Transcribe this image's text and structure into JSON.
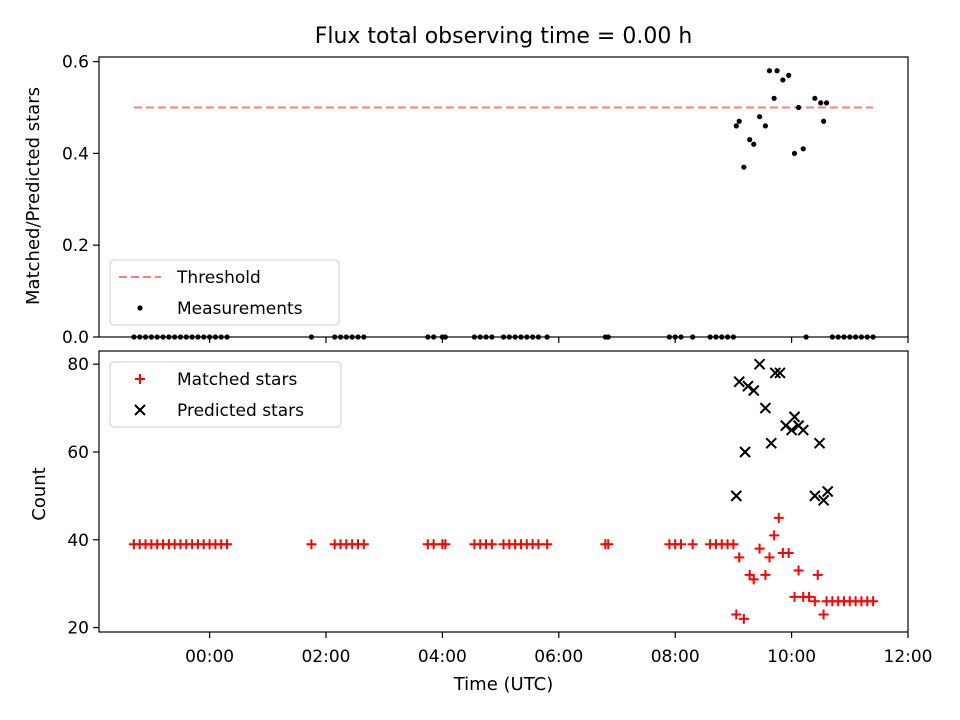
{
  "figure": {
    "title": "Flux total observing time = 0.00 h",
    "xlabel": "Time (UTC)"
  },
  "chart_data": [
    {
      "type": "scatter",
      "ylabel": "Matched/Predicted stars",
      "xlim": [
        -1.9,
        12.0
      ],
      "ylim": [
        0.0,
        0.61
      ],
      "yticks": [
        0.0,
        0.2,
        0.4,
        0.6
      ],
      "ytick_labels": [
        "0.0",
        "0.2",
        "0.4",
        "0.6"
      ],
      "legend": {
        "placement": "lower-left",
        "entries": [
          "Threshold",
          "Measurements"
        ]
      },
      "threshold": {
        "name": "Threshold",
        "value": 0.5,
        "x": [
          -1.3,
          11.4
        ],
        "color": "#f08080",
        "style": "dashed"
      },
      "series": [
        {
          "name": "Measurements",
          "marker": "dot",
          "color": "#000000",
          "points": [
            [
              -1.3,
              0
            ],
            [
              -1.2,
              0
            ],
            [
              -1.1,
              0
            ],
            [
              -1.0,
              0
            ],
            [
              -0.9,
              0
            ],
            [
              -0.8,
              0
            ],
            [
              -0.7,
              0
            ],
            [
              -0.6,
              0
            ],
            [
              -0.5,
              0
            ],
            [
              -0.4,
              0
            ],
            [
              -0.3,
              0
            ],
            [
              -0.2,
              0
            ],
            [
              -0.1,
              0
            ],
            [
              0.0,
              0
            ],
            [
              0.1,
              0
            ],
            [
              0.2,
              0
            ],
            [
              0.3,
              0
            ],
            [
              1.75,
              0
            ],
            [
              2.15,
              0
            ],
            [
              2.25,
              0
            ],
            [
              2.35,
              0
            ],
            [
              2.45,
              0
            ],
            [
              2.55,
              0
            ],
            [
              2.65,
              0
            ],
            [
              3.75,
              0
            ],
            [
              3.85,
              0
            ],
            [
              4.0,
              0
            ],
            [
              4.05,
              0
            ],
            [
              4.55,
              0
            ],
            [
              4.65,
              0
            ],
            [
              4.75,
              0
            ],
            [
              4.85,
              0
            ],
            [
              5.05,
              0
            ],
            [
              5.15,
              0
            ],
            [
              5.25,
              0
            ],
            [
              5.35,
              0
            ],
            [
              5.45,
              0
            ],
            [
              5.55,
              0
            ],
            [
              5.65,
              0
            ],
            [
              5.8,
              0
            ],
            [
              6.8,
              0
            ],
            [
              6.85,
              0
            ],
            [
              7.9,
              0
            ],
            [
              8.0,
              0
            ],
            [
              8.1,
              0
            ],
            [
              8.3,
              0
            ],
            [
              8.6,
              0
            ],
            [
              8.7,
              0
            ],
            [
              8.8,
              0
            ],
            [
              8.9,
              0
            ],
            [
              9.0,
              0
            ],
            [
              10.25,
              0
            ],
            [
              10.7,
              0
            ],
            [
              10.8,
              0
            ],
            [
              10.9,
              0
            ],
            [
              11.0,
              0
            ],
            [
              11.1,
              0
            ],
            [
              11.2,
              0
            ],
            [
              11.3,
              0
            ],
            [
              11.4,
              0
            ],
            [
              9.05,
              0.46
            ],
            [
              9.1,
              0.47
            ],
            [
              9.18,
              0.37
            ],
            [
              9.28,
              0.43
            ],
            [
              9.35,
              0.42
            ],
            [
              9.45,
              0.48
            ],
            [
              9.55,
              0.46
            ],
            [
              9.62,
              0.58
            ],
            [
              9.7,
              0.52
            ],
            [
              9.75,
              0.58
            ],
            [
              9.85,
              0.56
            ],
            [
              9.95,
              0.57
            ],
            [
              10.05,
              0.4
            ],
            [
              10.12,
              0.5
            ],
            [
              10.2,
              0.41
            ],
            [
              10.4,
              0.52
            ],
            [
              10.5,
              0.51
            ],
            [
              10.55,
              0.47
            ],
            [
              10.6,
              0.51
            ]
          ]
        }
      ]
    },
    {
      "type": "scatter",
      "ylabel": "Count",
      "xlim": [
        -1.9,
        12.0
      ],
      "ylim": [
        19.0,
        83.0
      ],
      "yticks": [
        20,
        40,
        60,
        80
      ],
      "ytick_labels": [
        "20",
        "40",
        "60",
        "80"
      ],
      "xticks": [
        0,
        2,
        4,
        6,
        8,
        10,
        12
      ],
      "xtick_labels": [
        "00:00",
        "02:00",
        "04:00",
        "06:00",
        "08:00",
        "10:00",
        "12:00"
      ],
      "legend": {
        "placement": "upper-left",
        "entries": [
          "Matched stars",
          "Predicted stars"
        ]
      },
      "series": [
        {
          "name": "Matched stars",
          "marker": "plus",
          "color": "#ff0000",
          "points": [
            [
              -1.3,
              39
            ],
            [
              -1.2,
              39
            ],
            [
              -1.1,
              39
            ],
            [
              -1.0,
              39
            ],
            [
              -0.9,
              39
            ],
            [
              -0.8,
              39
            ],
            [
              -0.7,
              39
            ],
            [
              -0.6,
              39
            ],
            [
              -0.5,
              39
            ],
            [
              -0.4,
              39
            ],
            [
              -0.3,
              39
            ],
            [
              -0.2,
              39
            ],
            [
              -0.1,
              39
            ],
            [
              0.0,
              39
            ],
            [
              0.1,
              39
            ],
            [
              0.2,
              39
            ],
            [
              0.3,
              39
            ],
            [
              1.75,
              39
            ],
            [
              2.15,
              39
            ],
            [
              2.25,
              39
            ],
            [
              2.35,
              39
            ],
            [
              2.45,
              39
            ],
            [
              2.55,
              39
            ],
            [
              2.65,
              39
            ],
            [
              3.75,
              39
            ],
            [
              3.85,
              39
            ],
            [
              4.0,
              39
            ],
            [
              4.05,
              39
            ],
            [
              4.55,
              39
            ],
            [
              4.65,
              39
            ],
            [
              4.75,
              39
            ],
            [
              4.85,
              39
            ],
            [
              5.05,
              39
            ],
            [
              5.15,
              39
            ],
            [
              5.25,
              39
            ],
            [
              5.35,
              39
            ],
            [
              5.45,
              39
            ],
            [
              5.55,
              39
            ],
            [
              5.65,
              39
            ],
            [
              5.8,
              39
            ],
            [
              6.8,
              39
            ],
            [
              6.85,
              39
            ],
            [
              7.9,
              39
            ],
            [
              8.0,
              39
            ],
            [
              8.1,
              39
            ],
            [
              8.3,
              39
            ],
            [
              8.6,
              39
            ],
            [
              8.7,
              39
            ],
            [
              8.8,
              39
            ],
            [
              8.9,
              39
            ],
            [
              9.0,
              39
            ],
            [
              9.05,
              23
            ],
            [
              9.1,
              36
            ],
            [
              9.18,
              22
            ],
            [
              9.28,
              32
            ],
            [
              9.35,
              31
            ],
            [
              9.45,
              38
            ],
            [
              9.55,
              32
            ],
            [
              9.62,
              36
            ],
            [
              9.7,
              41
            ],
            [
              9.78,
              45
            ],
            [
              9.85,
              37
            ],
            [
              9.95,
              37
            ],
            [
              10.05,
              27
            ],
            [
              10.12,
              33
            ],
            [
              10.2,
              27
            ],
            [
              10.3,
              27
            ],
            [
              10.4,
              26
            ],
            [
              10.45,
              32
            ],
            [
              10.55,
              23
            ],
            [
              10.6,
              26
            ],
            [
              10.7,
              26
            ],
            [
              10.8,
              26
            ],
            [
              10.9,
              26
            ],
            [
              11.0,
              26
            ],
            [
              11.1,
              26
            ],
            [
              11.2,
              26
            ],
            [
              11.3,
              26
            ],
            [
              11.4,
              26
            ]
          ]
        },
        {
          "name": "Predicted stars",
          "marker": "x",
          "color": "#000000",
          "points": [
            [
              9.05,
              50
            ],
            [
              9.1,
              76
            ],
            [
              9.2,
              60
            ],
            [
              9.25,
              75
            ],
            [
              9.35,
              74
            ],
            [
              9.45,
              80
            ],
            [
              9.55,
              70
            ],
            [
              9.65,
              62
            ],
            [
              9.72,
              78
            ],
            [
              9.8,
              78
            ],
            [
              9.9,
              66
            ],
            [
              10.0,
              65
            ],
            [
              10.05,
              68
            ],
            [
              10.12,
              66
            ],
            [
              10.2,
              65
            ],
            [
              10.4,
              50
            ],
            [
              10.48,
              62
            ],
            [
              10.55,
              49
            ],
            [
              10.62,
              51
            ]
          ]
        }
      ]
    }
  ]
}
